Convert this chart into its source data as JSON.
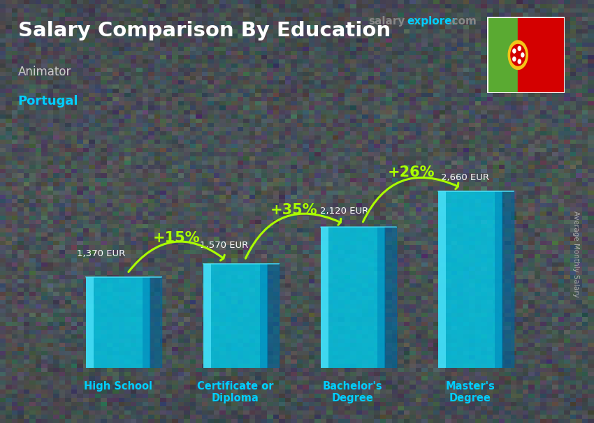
{
  "title": "Salary Comparison By Education",
  "subtitle_job": "Animator",
  "subtitle_location": "Portugal",
  "ylabel": "Average Monthly Salary",
  "categories": [
    "High School",
    "Certificate or\nDiploma",
    "Bachelor's\nDegree",
    "Master's\nDegree"
  ],
  "values": [
    1370,
    1570,
    2120,
    2660
  ],
  "value_labels": [
    "1,370 EUR",
    "1,570 EUR",
    "2,120 EUR",
    "2,660 EUR"
  ],
  "pct_labels": [
    "+15%",
    "+35%",
    "+26%"
  ],
  "bar_color_main": "#00c8e8",
  "bar_color_light": "#55e8ff",
  "bar_color_dark": "#0088bb",
  "bar_color_side": "#006699",
  "title_color": "#ffffff",
  "subtitle_job_color": "#cccccc",
  "subtitle_location_color": "#00cfff",
  "value_color": "#ffffff",
  "pct_color": "#aaff00",
  "arrow_color": "#aaff00",
  "xlabel_color": "#00cfff",
  "ylabel_color": "#aaaaaa",
  "website_salary_color": "#888888",
  "website_explorer_color": "#00cfff",
  "bg_color": "#3a4a55",
  "ylim": [
    0,
    3500
  ],
  "bar_width": 0.55,
  "x_positions": [
    0,
    1,
    2,
    3
  ]
}
